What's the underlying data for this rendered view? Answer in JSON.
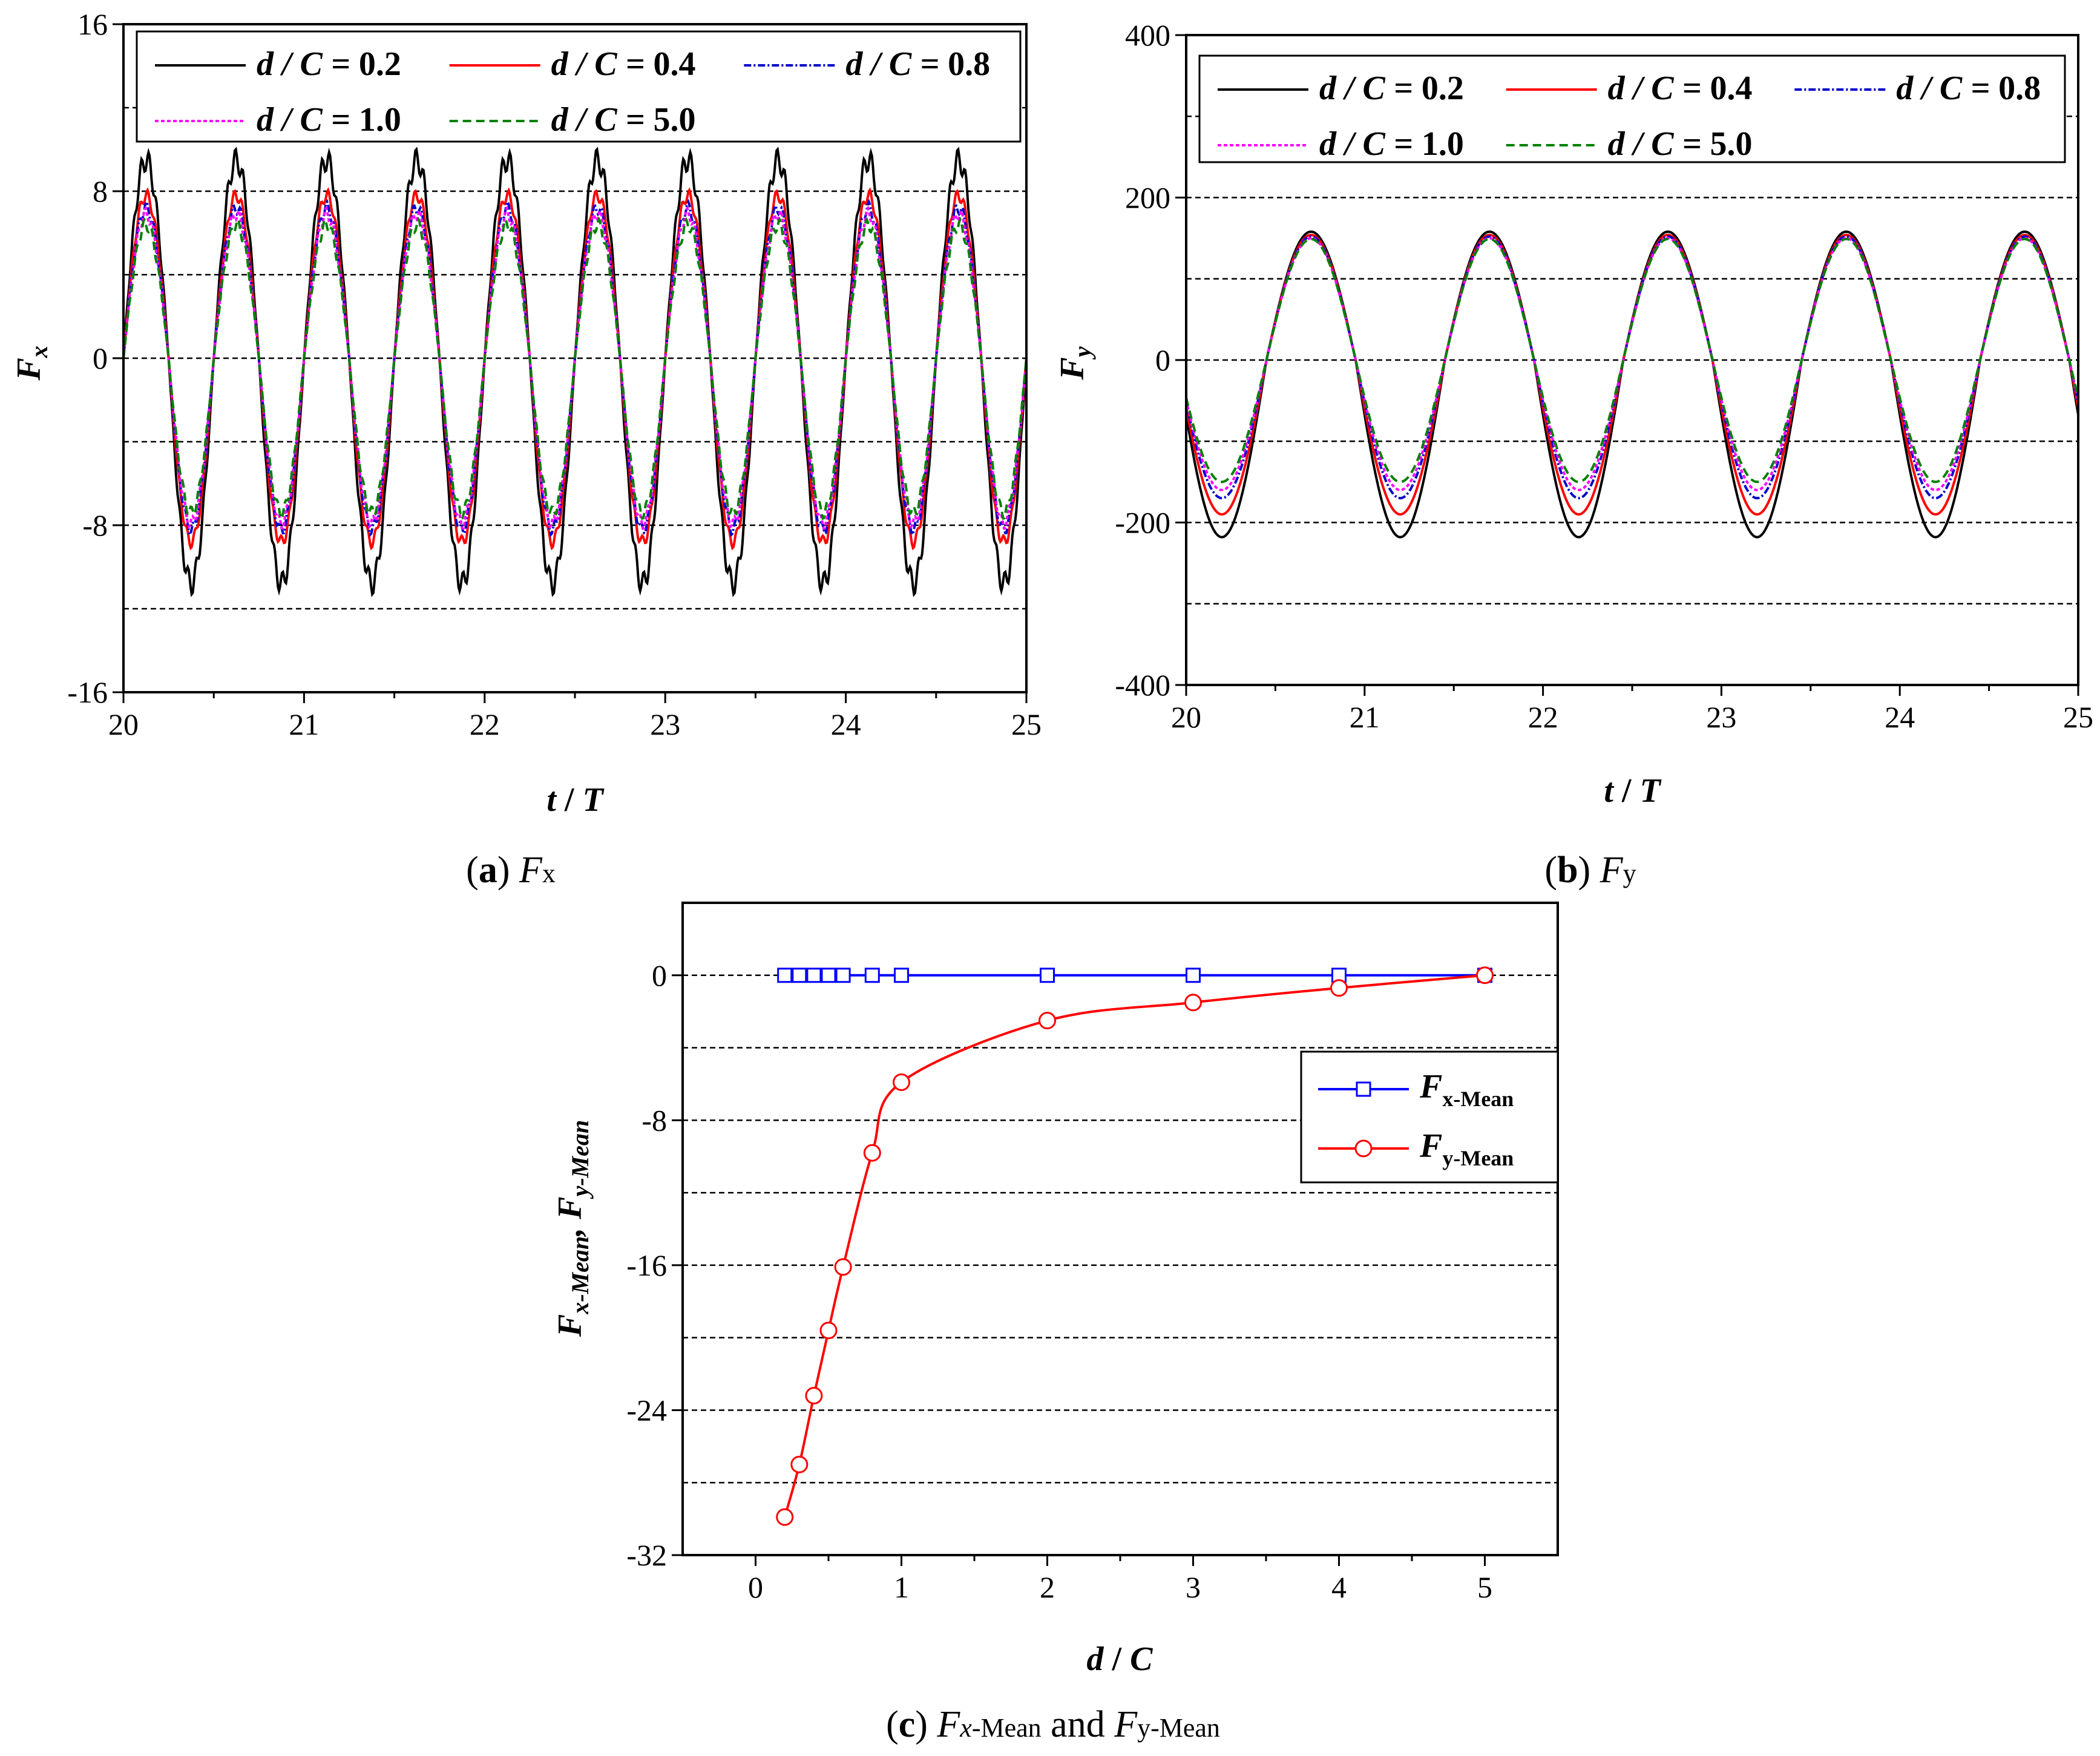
{
  "chart_data": [
    {
      "type": "line",
      "panel": "a",
      "caption_letter": "a",
      "caption_symbol": "F",
      "caption_sub": "x",
      "xlabel_main": "t",
      "xlabel_sep": " / ",
      "xlabel_end": "T",
      "ylabel_main": "F",
      "ylabel_sub": "x",
      "xlim": [
        20,
        25
      ],
      "ylim": [
        -16,
        16
      ],
      "xticks": [
        "20",
        "21",
        "22",
        "23",
        "24",
        "25"
      ],
      "yticks": [
        "-16",
        "-8",
        "0",
        "8",
        "16"
      ],
      "gridlines": [
        -12,
        -8,
        -4,
        0,
        4,
        8,
        12
      ],
      "legend_position": "top",
      "series": [
        {
          "name": "d / C = 0.2",
          "label_left": "d / C = ",
          "label_val": "0.2",
          "color": "#000000",
          "dash": "none",
          "amp_pos": 9.5,
          "amp_neg": 10.8,
          "phase": 0.25
        },
        {
          "name": "d / C = 0.4",
          "label_left": "d / C = ",
          "label_val": "0.4",
          "color": "#ff0000",
          "dash": "none",
          "amp_pos": 7.8,
          "amp_neg": 8.8,
          "phase": 0.25
        },
        {
          "name": "d / C = 0.8",
          "label_left": "d / C = ",
          "label_val": "0.8",
          "color": "#0000cc",
          "dash": "12,4,3,4",
          "amp_pos": 7.2,
          "amp_neg": 8.2,
          "phase": 0.25
        },
        {
          "name": "d / C = 1.0",
          "label_left": "d / C = ",
          "label_val": "1.0",
          "color": "#ff00ff",
          "dash": "6,4",
          "amp_pos": 6.9,
          "amp_neg": 7.9,
          "phase": 0.25
        },
        {
          "name": "d / C = 5.0",
          "label_left": "d / C = ",
          "label_val": "5.0",
          "color": "#008000",
          "dash": "14,8",
          "amp_pos": 6.4,
          "amp_neg": 7.4,
          "phase": 0.25
        }
      ]
    },
    {
      "type": "line",
      "panel": "b",
      "caption_letter": "b",
      "caption_symbol": "F",
      "caption_sub": "y",
      "xlabel_main": "t",
      "xlabel_sep": " / ",
      "xlabel_end": "T",
      "ylabel_main": "F",
      "ylabel_sub": "y",
      "xlim": [
        20,
        25
      ],
      "ylim": [
        -400,
        400
      ],
      "xticks": [
        "20",
        "21",
        "22",
        "23",
        "24",
        "25"
      ],
      "yticks": [
        "-400",
        "-200",
        "0",
        "200",
        "400"
      ],
      "gridlines": [
        -300,
        -200,
        -100,
        0,
        100,
        200,
        300,
        400
      ],
      "legend_position": "top",
      "series": [
        {
          "name": "d / C = 0.2",
          "label_left": "d / C = ",
          "label_val": "0.2",
          "color": "#000000",
          "dash": "none",
          "amp_pos": 158,
          "amp_neg": 218,
          "phase": 0.7
        },
        {
          "name": "d / C = 0.4",
          "label_left": "d / C = ",
          "label_val": "0.4",
          "color": "#ff0000",
          "dash": "none",
          "amp_pos": 154,
          "amp_neg": 190,
          "phase": 0.7
        },
        {
          "name": "d / C = 0.8",
          "label_left": "d / C = ",
          "label_val": "0.8",
          "color": "#0000cc",
          "dash": "12,4,3,4",
          "amp_pos": 152,
          "amp_neg": 170,
          "phase": 0.7
        },
        {
          "name": "d / C = 1.0",
          "label_left": "d / C = ",
          "label_val": "1.0",
          "color": "#ff00ff",
          "dash": "6,4",
          "amp_pos": 150,
          "amp_neg": 160,
          "phase": 0.7
        },
        {
          "name": "d / C = 5.0",
          "label_left": "d / C = ",
          "label_val": "5.0",
          "color": "#008000",
          "dash": "14,8",
          "amp_pos": 149,
          "amp_neg": 150,
          "phase": 0.7
        }
      ]
    },
    {
      "type": "line",
      "panel": "c",
      "caption_letter": "c",
      "caption_x_symbol": "F",
      "caption_x_sub": "x",
      "caption_x_tail": "-Mean",
      "caption_and": "and",
      "caption_y_symbol": "F",
      "caption_y_sub": "y-Mean",
      "xlabel_main": "d",
      "xlabel_sep": " / ",
      "xlabel_end": "C",
      "ylabel_f1": "F",
      "ylabel_s1": "x-Mean",
      "ylabel_comma": ",",
      "ylabel_f2": "F",
      "ylabel_s2": "y-Mean",
      "xlim": [
        -0.5,
        5.5
      ],
      "ylim": [
        -32,
        4
      ],
      "xticks": [
        "0",
        "1",
        "2",
        "3",
        "4",
        "5"
      ],
      "yticks": [
        "-32",
        "-24",
        "-16",
        "-8",
        "0"
      ],
      "gridlines": [
        -28,
        -24,
        -20,
        -16,
        -12,
        -8,
        -4,
        0
      ],
      "legend_position": "right",
      "series": [
        {
          "name": "Fx-Mean",
          "label_main": "F",
          "label_sub": "x-Mean",
          "color": "#0000ff",
          "marker": "square",
          "x": [
            0.2,
            0.3,
            0.4,
            0.5,
            0.6,
            0.8,
            1.0,
            2.0,
            3.0,
            4.0,
            5.0
          ],
          "y": [
            0,
            0,
            0,
            0,
            0,
            0,
            0,
            0,
            0,
            0,
            0
          ]
        },
        {
          "name": "Fy-Mean",
          "label_main": "F",
          "label_sub": "y-Mean",
          "color": "#ff0000",
          "marker": "circle",
          "x": [
            0.2,
            0.3,
            0.4,
            0.5,
            0.6,
            0.8,
            1.0,
            2.0,
            3.0,
            4.0,
            5.0
          ],
          "y": [
            -29.9,
            -27.0,
            -23.2,
            -19.6,
            -16.1,
            -9.8,
            -5.9,
            -2.5,
            -1.5,
            -0.7,
            0
          ]
        }
      ]
    }
  ]
}
